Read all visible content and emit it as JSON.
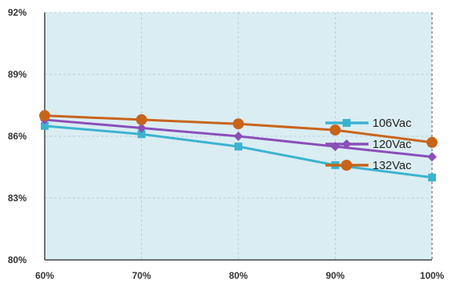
{
  "chart_data": {
    "type": "line",
    "title": "",
    "xlabel": "",
    "ylabel": "",
    "x": [
      "60%",
      "70%",
      "80%",
      "90%",
      "100%"
    ],
    "y_ticks": [
      "80%",
      "83%",
      "86%",
      "89%",
      "92%"
    ],
    "ylim": [
      80,
      92
    ],
    "grid": true,
    "legend_position": "right",
    "series": [
      {
        "name": "106Vac",
        "values": [
          86.5,
          86.1,
          85.5,
          84.6,
          84.0
        ],
        "color": "#3bb3cf",
        "marker": "square"
      },
      {
        "name": "120Vac",
        "values": [
          86.8,
          86.4,
          86.0,
          85.5,
          85.0
        ],
        "color": "#8a4fb8",
        "marker": "diamond"
      },
      {
        "name": "132Vac",
        "values": [
          87.0,
          86.8,
          86.6,
          86.3,
          85.7
        ],
        "color": "#c8641a",
        "marker": "circle"
      }
    ],
    "plot_background": "#daedf2"
  }
}
